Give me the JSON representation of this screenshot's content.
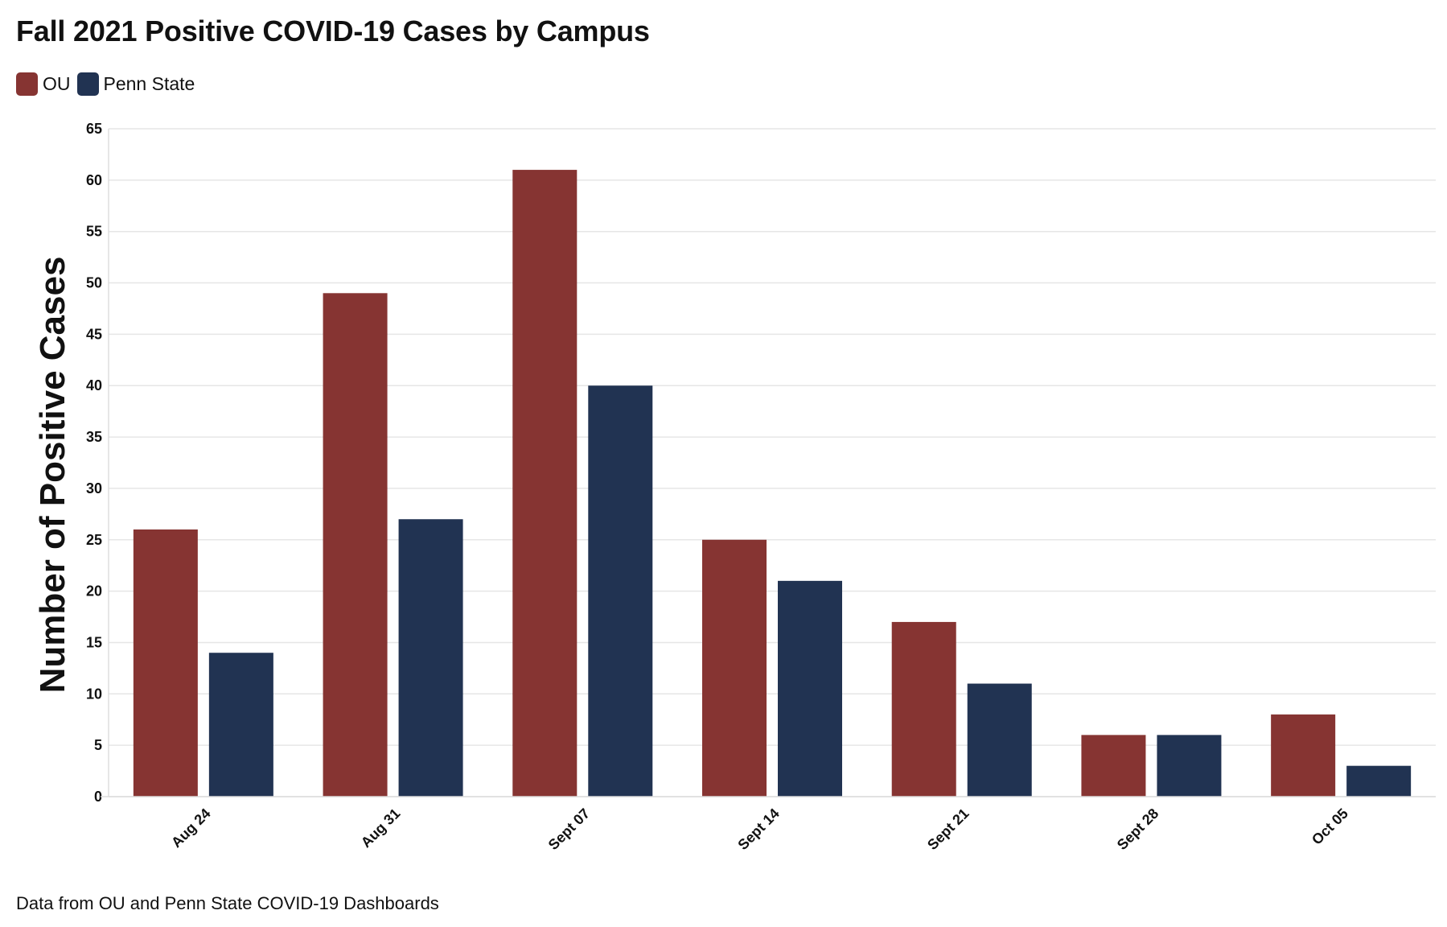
{
  "chart_data": {
    "type": "bar",
    "title": "Fall 2021 Positive COVID-19 Cases by Campus",
    "xlabel": "",
    "ylabel": "Number of Positive Cases",
    "categories": [
      "Aug 24",
      "Aug 31",
      "Sept 07",
      "Sept 14",
      "Sept 21",
      "Sept 28",
      "Oct 05"
    ],
    "series": [
      {
        "name": "OU",
        "color": "#863432",
        "values": [
          26,
          49,
          61,
          25,
          17,
          6,
          8
        ]
      },
      {
        "name": "Penn State",
        "color": "#213352",
        "values": [
          14,
          27,
          40,
          21,
          11,
          6,
          3
        ]
      }
    ],
    "ylim": [
      0,
      65
    ],
    "yticks": [
      0,
      5,
      10,
      15,
      20,
      25,
      30,
      35,
      40,
      45,
      50,
      55,
      60,
      65
    ],
    "grid": true,
    "legend": "top-left",
    "source_note": "Data from OU and Penn State COVID-19 Dashboards"
  }
}
